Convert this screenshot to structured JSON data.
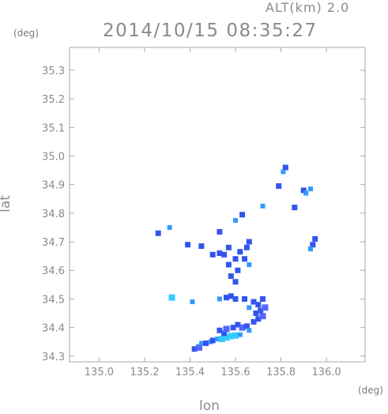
{
  "header": {
    "alt_label": "ALT(km) 2.0",
    "timestamp": "2014/10/15 08:35:27"
  },
  "chart_data": {
    "type": "heatmap",
    "title": "2014/10/15 08:35:27",
    "subtitle": "ALT(km) 2.0",
    "xlabel": "lon",
    "ylabel": "lat",
    "x_unit": "(deg)",
    "y_unit": "(deg)",
    "xlim": [
      134.87,
      136.17
    ],
    "ylim": [
      34.28,
      35.38
    ],
    "xticks": [
      "135.0",
      "135.2",
      "135.4",
      "135.6",
      "135.8",
      "136.0"
    ],
    "yticks": [
      "34.3",
      "34.4",
      "34.5",
      "34.6",
      "34.7",
      "34.8",
      "34.9",
      "35.0",
      "35.1",
      "35.2",
      "35.3"
    ],
    "grid": false,
    "colors": {
      "light": "#3399ff",
      "medium": "#3355ee",
      "strong": "#5566ff",
      "cyan": "#33ccff",
      "axis": "#aaaaaa"
    },
    "echo_cells": [
      {
        "lon": 135.42,
        "lat": 34.325,
        "level": "medium"
      },
      {
        "lon": 135.44,
        "lat": 34.33,
        "level": "strong"
      },
      {
        "lon": 135.45,
        "lat": 34.345,
        "level": "light"
      },
      {
        "lon": 135.47,
        "lat": 34.345,
        "level": "medium"
      },
      {
        "lon": 135.49,
        "lat": 34.35,
        "level": "light"
      },
      {
        "lon": 135.5,
        "lat": 34.355,
        "level": "medium"
      },
      {
        "lon": 135.52,
        "lat": 34.36,
        "level": "light"
      },
      {
        "lon": 135.54,
        "lat": 34.36,
        "level": "cyan"
      },
      {
        "lon": 135.56,
        "lat": 34.365,
        "level": "cyan"
      },
      {
        "lon": 135.58,
        "lat": 34.37,
        "level": "cyan"
      },
      {
        "lon": 135.6,
        "lat": 34.372,
        "level": "cyan"
      },
      {
        "lon": 135.62,
        "lat": 34.375,
        "level": "light"
      },
      {
        "lon": 135.55,
        "lat": 34.38,
        "level": "medium"
      },
      {
        "lon": 135.53,
        "lat": 34.39,
        "level": "medium"
      },
      {
        "lon": 135.56,
        "lat": 34.395,
        "level": "strong"
      },
      {
        "lon": 135.59,
        "lat": 34.4,
        "level": "medium"
      },
      {
        "lon": 135.61,
        "lat": 34.41,
        "level": "medium"
      },
      {
        "lon": 135.63,
        "lat": 34.4,
        "level": "strong"
      },
      {
        "lon": 135.65,
        "lat": 34.405,
        "level": "medium"
      },
      {
        "lon": 135.66,
        "lat": 34.39,
        "level": "light"
      },
      {
        "lon": 135.68,
        "lat": 34.42,
        "level": "medium"
      },
      {
        "lon": 135.7,
        "lat": 34.43,
        "level": "medium"
      },
      {
        "lon": 135.72,
        "lat": 34.44,
        "level": "strong"
      },
      {
        "lon": 135.69,
        "lat": 34.45,
        "level": "medium"
      },
      {
        "lon": 135.71,
        "lat": 34.46,
        "level": "medium"
      },
      {
        "lon": 135.73,
        "lat": 34.47,
        "level": "strong"
      },
      {
        "lon": 135.7,
        "lat": 34.48,
        "level": "medium"
      },
      {
        "lon": 135.68,
        "lat": 34.49,
        "level": "medium"
      },
      {
        "lon": 135.72,
        "lat": 34.5,
        "level": "medium"
      },
      {
        "lon": 135.66,
        "lat": 34.47,
        "level": "light"
      },
      {
        "lon": 135.64,
        "lat": 34.5,
        "level": "medium"
      },
      {
        "lon": 135.6,
        "lat": 34.5,
        "level": "medium"
      },
      {
        "lon": 135.58,
        "lat": 34.51,
        "level": "medium"
      },
      {
        "lon": 135.56,
        "lat": 34.505,
        "level": "medium"
      },
      {
        "lon": 135.53,
        "lat": 34.5,
        "level": "light"
      },
      {
        "lon": 135.6,
        "lat": 34.56,
        "level": "medium"
      },
      {
        "lon": 135.58,
        "lat": 34.58,
        "level": "medium"
      },
      {
        "lon": 135.61,
        "lat": 34.6,
        "level": "medium"
      },
      {
        "lon": 135.57,
        "lat": 34.62,
        "level": "medium"
      },
      {
        "lon": 135.6,
        "lat": 34.64,
        "level": "medium"
      },
      {
        "lon": 135.55,
        "lat": 34.655,
        "level": "medium"
      },
      {
        "lon": 135.53,
        "lat": 34.66,
        "level": "medium"
      },
      {
        "lon": 135.5,
        "lat": 34.655,
        "level": "medium"
      },
      {
        "lon": 135.62,
        "lat": 34.665,
        "level": "medium"
      },
      {
        "lon": 135.65,
        "lat": 34.68,
        "level": "medium"
      },
      {
        "lon": 135.66,
        "lat": 34.7,
        "level": "medium"
      },
      {
        "lon": 135.64,
        "lat": 34.64,
        "level": "medium"
      },
      {
        "lon": 135.66,
        "lat": 34.62,
        "level": "light"
      },
      {
        "lon": 135.57,
        "lat": 34.68,
        "level": "medium"
      },
      {
        "lon": 135.45,
        "lat": 34.685,
        "level": "medium"
      },
      {
        "lon": 135.39,
        "lat": 34.69,
        "level": "medium"
      },
      {
        "lon": 135.26,
        "lat": 34.73,
        "level": "medium"
      },
      {
        "lon": 135.31,
        "lat": 34.75,
        "level": "light"
      },
      {
        "lon": 135.32,
        "lat": 34.505,
        "level": "cyan"
      },
      {
        "lon": 135.41,
        "lat": 34.49,
        "level": "light"
      },
      {
        "lon": 135.53,
        "lat": 34.735,
        "level": "medium"
      },
      {
        "lon": 135.6,
        "lat": 34.775,
        "level": "light"
      },
      {
        "lon": 135.63,
        "lat": 34.795,
        "level": "medium"
      },
      {
        "lon": 135.72,
        "lat": 34.825,
        "level": "light"
      },
      {
        "lon": 135.82,
        "lat": 34.96,
        "level": "medium"
      },
      {
        "lon": 135.81,
        "lat": 34.945,
        "level": "light"
      },
      {
        "lon": 135.79,
        "lat": 34.895,
        "level": "medium"
      },
      {
        "lon": 135.9,
        "lat": 34.88,
        "level": "medium"
      },
      {
        "lon": 135.91,
        "lat": 34.87,
        "level": "light"
      },
      {
        "lon": 135.93,
        "lat": 34.885,
        "level": "light"
      },
      {
        "lon": 135.86,
        "lat": 34.82,
        "level": "medium"
      },
      {
        "lon": 135.95,
        "lat": 34.71,
        "level": "medium"
      },
      {
        "lon": 135.94,
        "lat": 34.69,
        "level": "medium"
      },
      {
        "lon": 135.93,
        "lat": 34.675,
        "level": "light"
      }
    ]
  }
}
